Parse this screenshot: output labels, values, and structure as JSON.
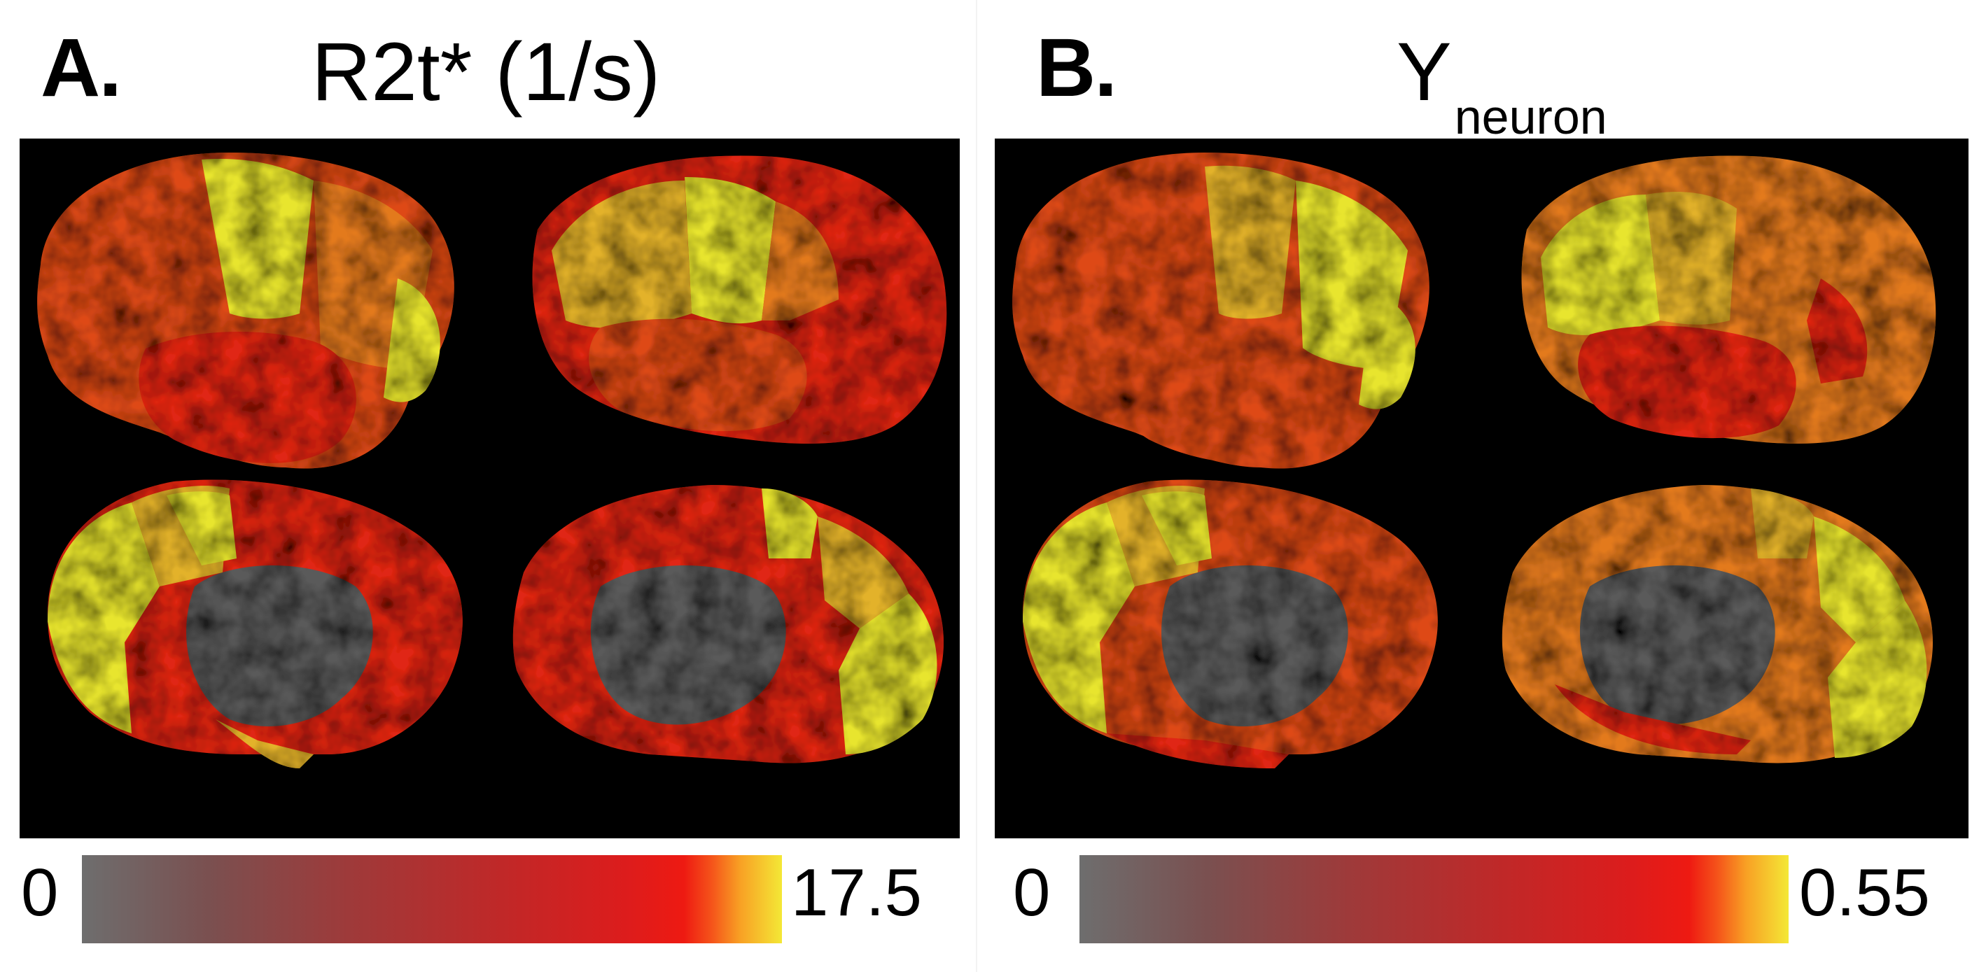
{
  "panels": [
    {
      "letter": "A.",
      "title": "R2t* (1/s)",
      "title_sub": "",
      "colorbar": {
        "min_label": "0",
        "max_label": "17.5"
      },
      "colors": {
        "low": "#6e6e6e",
        "mid": "#dd1c1c",
        "high": "#f4e836"
      }
    },
    {
      "letter": "B.",
      "title": "Y",
      "title_sub": "neuron",
      "colorbar": {
        "min_label": "0",
        "max_label": "0.55"
      },
      "colors": {
        "low": "#6e6e6e",
        "mid": "#dd1c1c",
        "high": "#f4e836"
      }
    }
  ],
  "region_colors": {
    "yellow": "#e8e52e",
    "yellow_orange": "#e3b22a",
    "orange": "#e37a1e",
    "red_orange": "#de4a16",
    "red": "#e02512",
    "gray": "#5a5a5a"
  }
}
